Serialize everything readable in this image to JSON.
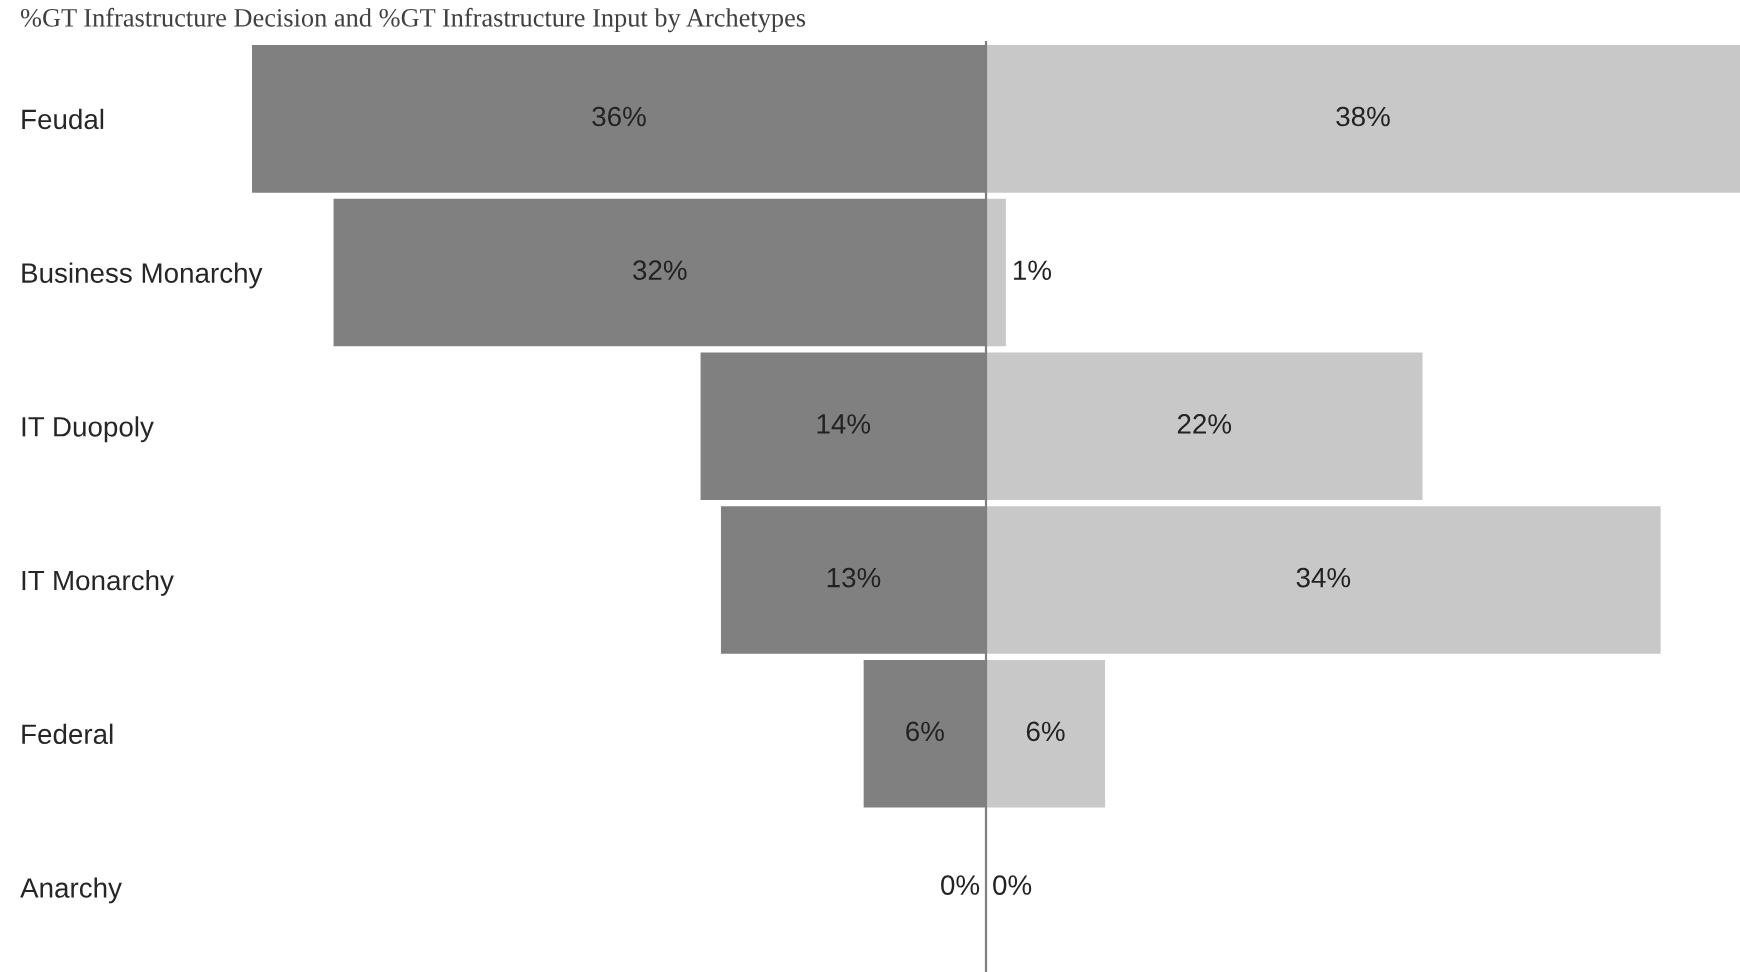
{
  "chart_data": [
    {
      "type": "bar",
      "orientation": "horizontal",
      "title": "%GT Infrastructure Decision and %GT Infrastructure Input by Archetypes",
      "categories": [
        "Feudal",
        "Business Monarchy",
        "IT Duopoly",
        "IT Monarchy",
        "Federal",
        "Anarchy"
      ],
      "tick_labels": "y",
      "series": [
        {
          "color": "#808080",
          "values": [
            36,
            32,
            14,
            13,
            6,
            0
          ],
          "value_labels": [
            "36%",
            "32%",
            "14%",
            "13%",
            "6%",
            "0%"
          ]
        }
      ]
    },
    {
      "type": "bar",
      "orientation": "horizontal",
      "tick_labels": false,
      "series": [
        {
          "color": "#c8c8c8",
          "values": [
            38,
            1,
            22,
            34,
            6,
            0
          ],
          "value_labels": [
            "38%",
            "1%",
            "22%",
            "34%",
            "6%",
            "0%"
          ]
        }
      ]
    }
  ]
}
